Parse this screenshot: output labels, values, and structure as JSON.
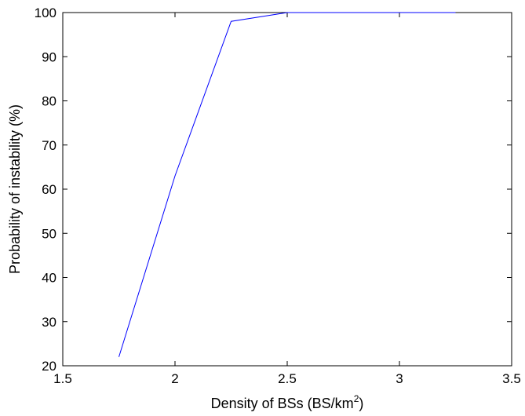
{
  "chart_data": {
    "type": "line",
    "title": "",
    "xlabel": "Density of BSs (BS/km",
    "xlabel_superscript": "2",
    "xlabel_suffix": ")",
    "ylabel": "Probability of instability (%)",
    "xlim": [
      1.5,
      3.5
    ],
    "ylim": [
      20,
      100
    ],
    "x_ticks": [
      "1.5",
      "2",
      "2.5",
      "3",
      "3.5"
    ],
    "y_ticks": [
      "20",
      "30",
      "40",
      "50",
      "60",
      "70",
      "80",
      "90",
      "100"
    ],
    "grid": false,
    "series": [
      {
        "color": "#0000ff",
        "x": [
          1.75,
          2.0,
          2.25,
          2.5,
          3.0,
          3.25
        ],
        "y": [
          22,
          63,
          98,
          100,
          100,
          100
        ]
      }
    ]
  }
}
